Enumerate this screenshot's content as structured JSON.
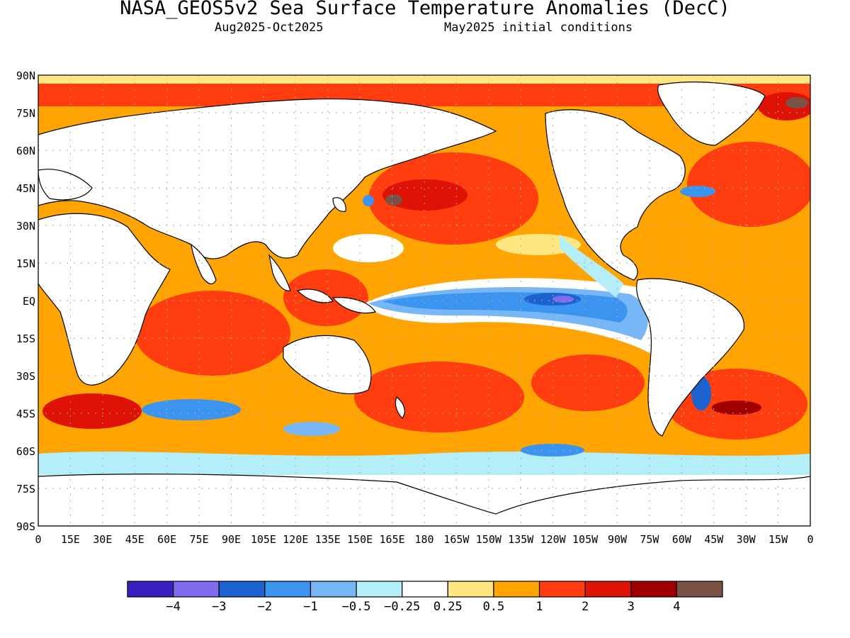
{
  "header": {
    "title": "NASA_GEOS5v2 Sea Surface Temperature Anomalies (DecC)",
    "period": "Aug2025-Oct2025",
    "init": "May2025 initial conditions"
  },
  "axes": {
    "lat_labels": [
      "90N",
      "75N",
      "60N",
      "45N",
      "30N",
      "15N",
      "EQ",
      "15S",
      "30S",
      "45S",
      "60S",
      "75S",
      "90S"
    ],
    "lon_labels": [
      "0",
      "15E",
      "30E",
      "45E",
      "60E",
      "75E",
      "90E",
      "105E",
      "120E",
      "135E",
      "150E",
      "165E",
      "180",
      "165W",
      "150W",
      "135W",
      "120W",
      "105W",
      "90W",
      "75W",
      "60W",
      "45W",
      "30W",
      "15W",
      "0"
    ]
  },
  "colorbar": {
    "colors": [
      "#3b1fc0",
      "#7f6bef",
      "#1c63d1",
      "#3b94ef",
      "#77b6f7",
      "#b4eef8",
      "#ffffff",
      "#ffe680",
      "#ffa400",
      "#ff3d0f",
      "#de1205",
      "#a00000",
      "#7a5246"
    ],
    "labels": [
      "-4",
      "-3",
      "-2",
      "-1",
      "-0.5",
      "-0.25",
      "0.25",
      "0.5",
      "1",
      "2",
      "3",
      "4"
    ]
  },
  "colors": {
    "land": "#ffffff",
    "coast": "#000000",
    "grid": "#aaaaaa",
    "neutral": "#ffffff",
    "cold": "#3b94ef",
    "warm": "#ffa400"
  }
}
